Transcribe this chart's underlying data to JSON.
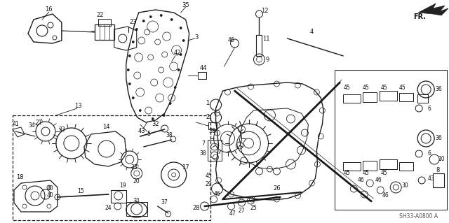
{
  "bg_color": "#ffffff",
  "line_color": "#1a1a1a",
  "text_color": "#111111",
  "gray_color": "#888888",
  "fig_width": 6.4,
  "fig_height": 3.19,
  "dpi": 100,
  "part_number": "SH33-A0800 A",
  "fr_label": "FR.",
  "xlim": [
    0,
    640
  ],
  "ylim": [
    319,
    0
  ]
}
